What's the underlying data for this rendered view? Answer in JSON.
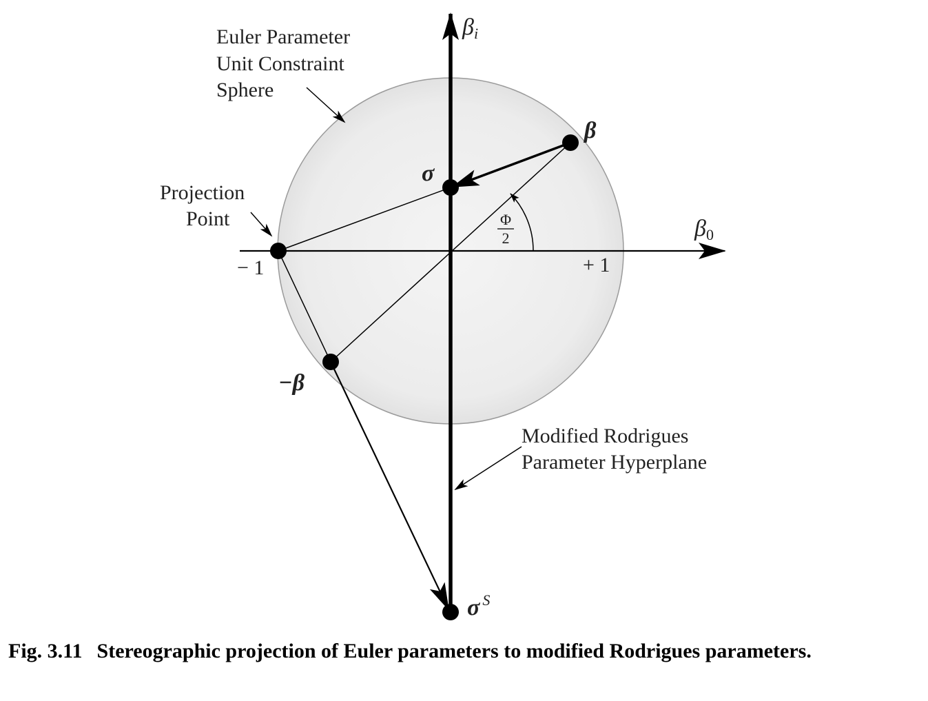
{
  "diagram": {
    "labels": {
      "sphere_line1": "Euler Parameter",
      "sphere_line2": "Unit Constraint",
      "sphere_line3": "Sphere",
      "projection_line1": "Projection",
      "projection_line2": "Point",
      "hyperplane_line1": "Modified Rodrigues",
      "hyperplane_line2": "Parameter Hyperplane",
      "axis_vertical_symbol": "β",
      "axis_vertical_subscript": "i",
      "axis_horizontal_symbol": "β",
      "axis_horizontal_subscript": "0",
      "tick_minus_one": "− 1",
      "tick_plus_one": "+ 1",
      "point_beta": "β",
      "point_sigma": "σ",
      "point_neg_beta": "−β",
      "point_shadow_symbol": "σ",
      "point_shadow_superscript": "S",
      "angle_numerator": "Φ",
      "angle_denominator": "2"
    },
    "colors": {
      "sphere_fill": "#ebebeb",
      "sphere_edge": "#9a9a9a",
      "ink": "#000000"
    }
  },
  "caption": {
    "label": "Fig. 3.11",
    "text": "Stereographic projection of Euler parameters to modified Rodrigues parameters."
  }
}
